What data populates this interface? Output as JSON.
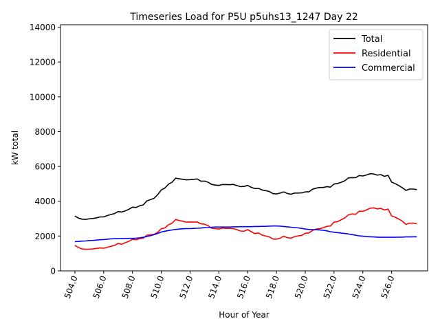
{
  "chart_data": {
    "type": "line",
    "title": "Timeseries Load for P5U p5uhs13_1247  Day 22",
    "xlabel": "Hour of Year",
    "ylabel": "kW total",
    "xlim": [
      503.0,
      528.5
    ],
    "ylim": [
      0,
      14140
    ],
    "xticks": [
      504,
      506,
      508,
      510,
      512,
      514,
      516,
      518,
      520,
      522,
      524,
      526
    ],
    "xtick_labels": [
      "504.0",
      "506.0",
      "508.0",
      "510.0",
      "512.0",
      "514.0",
      "516.0",
      "518.0",
      "520.0",
      "522.0",
      "524.0",
      "526.0"
    ],
    "yticks": [
      0,
      2000,
      4000,
      6000,
      8000,
      10000,
      12000,
      14000
    ],
    "ytick_labels": [
      "0",
      "2000",
      "4000",
      "6000",
      "8000",
      "10000",
      "12000",
      "14000"
    ],
    "grid": false,
    "legend_position": "upper right",
    "x": [
      504.0,
      504.25,
      504.5,
      504.75,
      505.0,
      505.25,
      505.5,
      505.75,
      506.0,
      506.25,
      506.5,
      506.75,
      507.0,
      507.25,
      507.5,
      507.75,
      508.0,
      508.25,
      508.5,
      508.75,
      509.0,
      509.25,
      509.5,
      509.75,
      510.0,
      510.25,
      510.5,
      510.75,
      511.0,
      511.25,
      511.5,
      511.75,
      512.0,
      512.25,
      512.5,
      512.75,
      513.0,
      513.25,
      513.5,
      513.75,
      514.0,
      514.25,
      514.5,
      514.75,
      515.0,
      515.25,
      515.5,
      515.75,
      516.0,
      516.25,
      516.5,
      516.75,
      517.0,
      517.25,
      517.5,
      517.75,
      518.0,
      518.25,
      518.5,
      518.75,
      519.0,
      519.25,
      519.5,
      519.75,
      520.0,
      520.25,
      520.5,
      520.75,
      521.0,
      521.25,
      521.5,
      521.75,
      522.0,
      522.25,
      522.5,
      522.75,
      523.0,
      523.25,
      523.5,
      523.75,
      524.0,
      524.25,
      524.5,
      524.75,
      525.0,
      525.25,
      525.5,
      525.75,
      526.0,
      526.25,
      526.5,
      526.75,
      527.0,
      527.25,
      527.5,
      527.75
    ],
    "series": [
      {
        "name": "Total",
        "color": "#000000",
        "values": [
          3150,
          3030,
          2970,
          2960,
          2990,
          3010,
          3050,
          3100,
          3100,
          3180,
          3240,
          3290,
          3410,
          3380,
          3450,
          3540,
          3660,
          3640,
          3740,
          3790,
          4020,
          4090,
          4170,
          4380,
          4650,
          4760,
          4980,
          5090,
          5330,
          5290,
          5260,
          5230,
          5240,
          5260,
          5280,
          5150,
          5160,
          5090,
          4970,
          4930,
          4910,
          4960,
          4960,
          4950,
          4970,
          4900,
          4840,
          4850,
          4910,
          4800,
          4730,
          4740,
          4650,
          4610,
          4560,
          4440,
          4420,
          4470,
          4540,
          4450,
          4400,
          4470,
          4470,
          4480,
          4540,
          4540,
          4690,
          4750,
          4790,
          4790,
          4840,
          4810,
          4990,
          5020,
          5090,
          5180,
          5340,
          5360,
          5350,
          5480,
          5450,
          5510,
          5580,
          5570,
          5500,
          5530,
          5430,
          5490,
          5100,
          5010,
          4900,
          4770,
          4620,
          4700,
          4700,
          4670
        ]
      },
      {
        "name": "Residential",
        "color": "#ff0000",
        "values": [
          1470,
          1340,
          1260,
          1240,
          1250,
          1260,
          1290,
          1320,
          1300,
          1360,
          1410,
          1460,
          1580,
          1530,
          1620,
          1700,
          1820,
          1780,
          1860,
          1880,
          2050,
          2070,
          2100,
          2220,
          2420,
          2470,
          2650,
          2740,
          2950,
          2890,
          2850,
          2800,
          2810,
          2800,
          2810,
          2700,
          2680,
          2600,
          2450,
          2430,
          2400,
          2460,
          2440,
          2440,
          2430,
          2370,
          2290,
          2280,
          2370,
          2250,
          2140,
          2180,
          2060,
          2000,
          1960,
          1830,
          1820,
          1880,
          1990,
          1910,
          1880,
          1960,
          2010,
          2040,
          2160,
          2180,
          2320,
          2400,
          2420,
          2480,
          2560,
          2580,
          2800,
          2830,
          2940,
          3040,
          3220,
          3270,
          3250,
          3430,
          3420,
          3500,
          3600,
          3620,
          3560,
          3590,
          3500,
          3550,
          3160,
          3080,
          2980,
          2850,
          2670,
          2740,
          2740,
          2710
        ]
      },
      {
        "name": "Commercial",
        "color": "#0000ff",
        "values": [
          1680,
          1690,
          1710,
          1720,
          1740,
          1750,
          1770,
          1790,
          1800,
          1820,
          1840,
          1850,
          1850,
          1860,
          1860,
          1870,
          1870,
          1880,
          1900,
          1930,
          1970,
          2020,
          2080,
          2150,
          2230,
          2280,
          2320,
          2350,
          2380,
          2400,
          2420,
          2430,
          2430,
          2440,
          2450,
          2460,
          2480,
          2490,
          2510,
          2520,
          2520,
          2520,
          2520,
          2520,
          2530,
          2530,
          2540,
          2540,
          2540,
          2540,
          2550,
          2550,
          2560,
          2560,
          2570,
          2580,
          2580,
          2570,
          2550,
          2530,
          2510,
          2490,
          2470,
          2440,
          2400,
          2380,
          2370,
          2360,
          2350,
          2330,
          2300,
          2250,
          2220,
          2200,
          2170,
          2150,
          2120,
          2080,
          2050,
          2010,
          1990,
          1970,
          1960,
          1950,
          1940,
          1930,
          1930,
          1930,
          1930,
          1930,
          1940,
          1940,
          1950,
          1950,
          1960,
          1960
        ]
      }
    ]
  }
}
